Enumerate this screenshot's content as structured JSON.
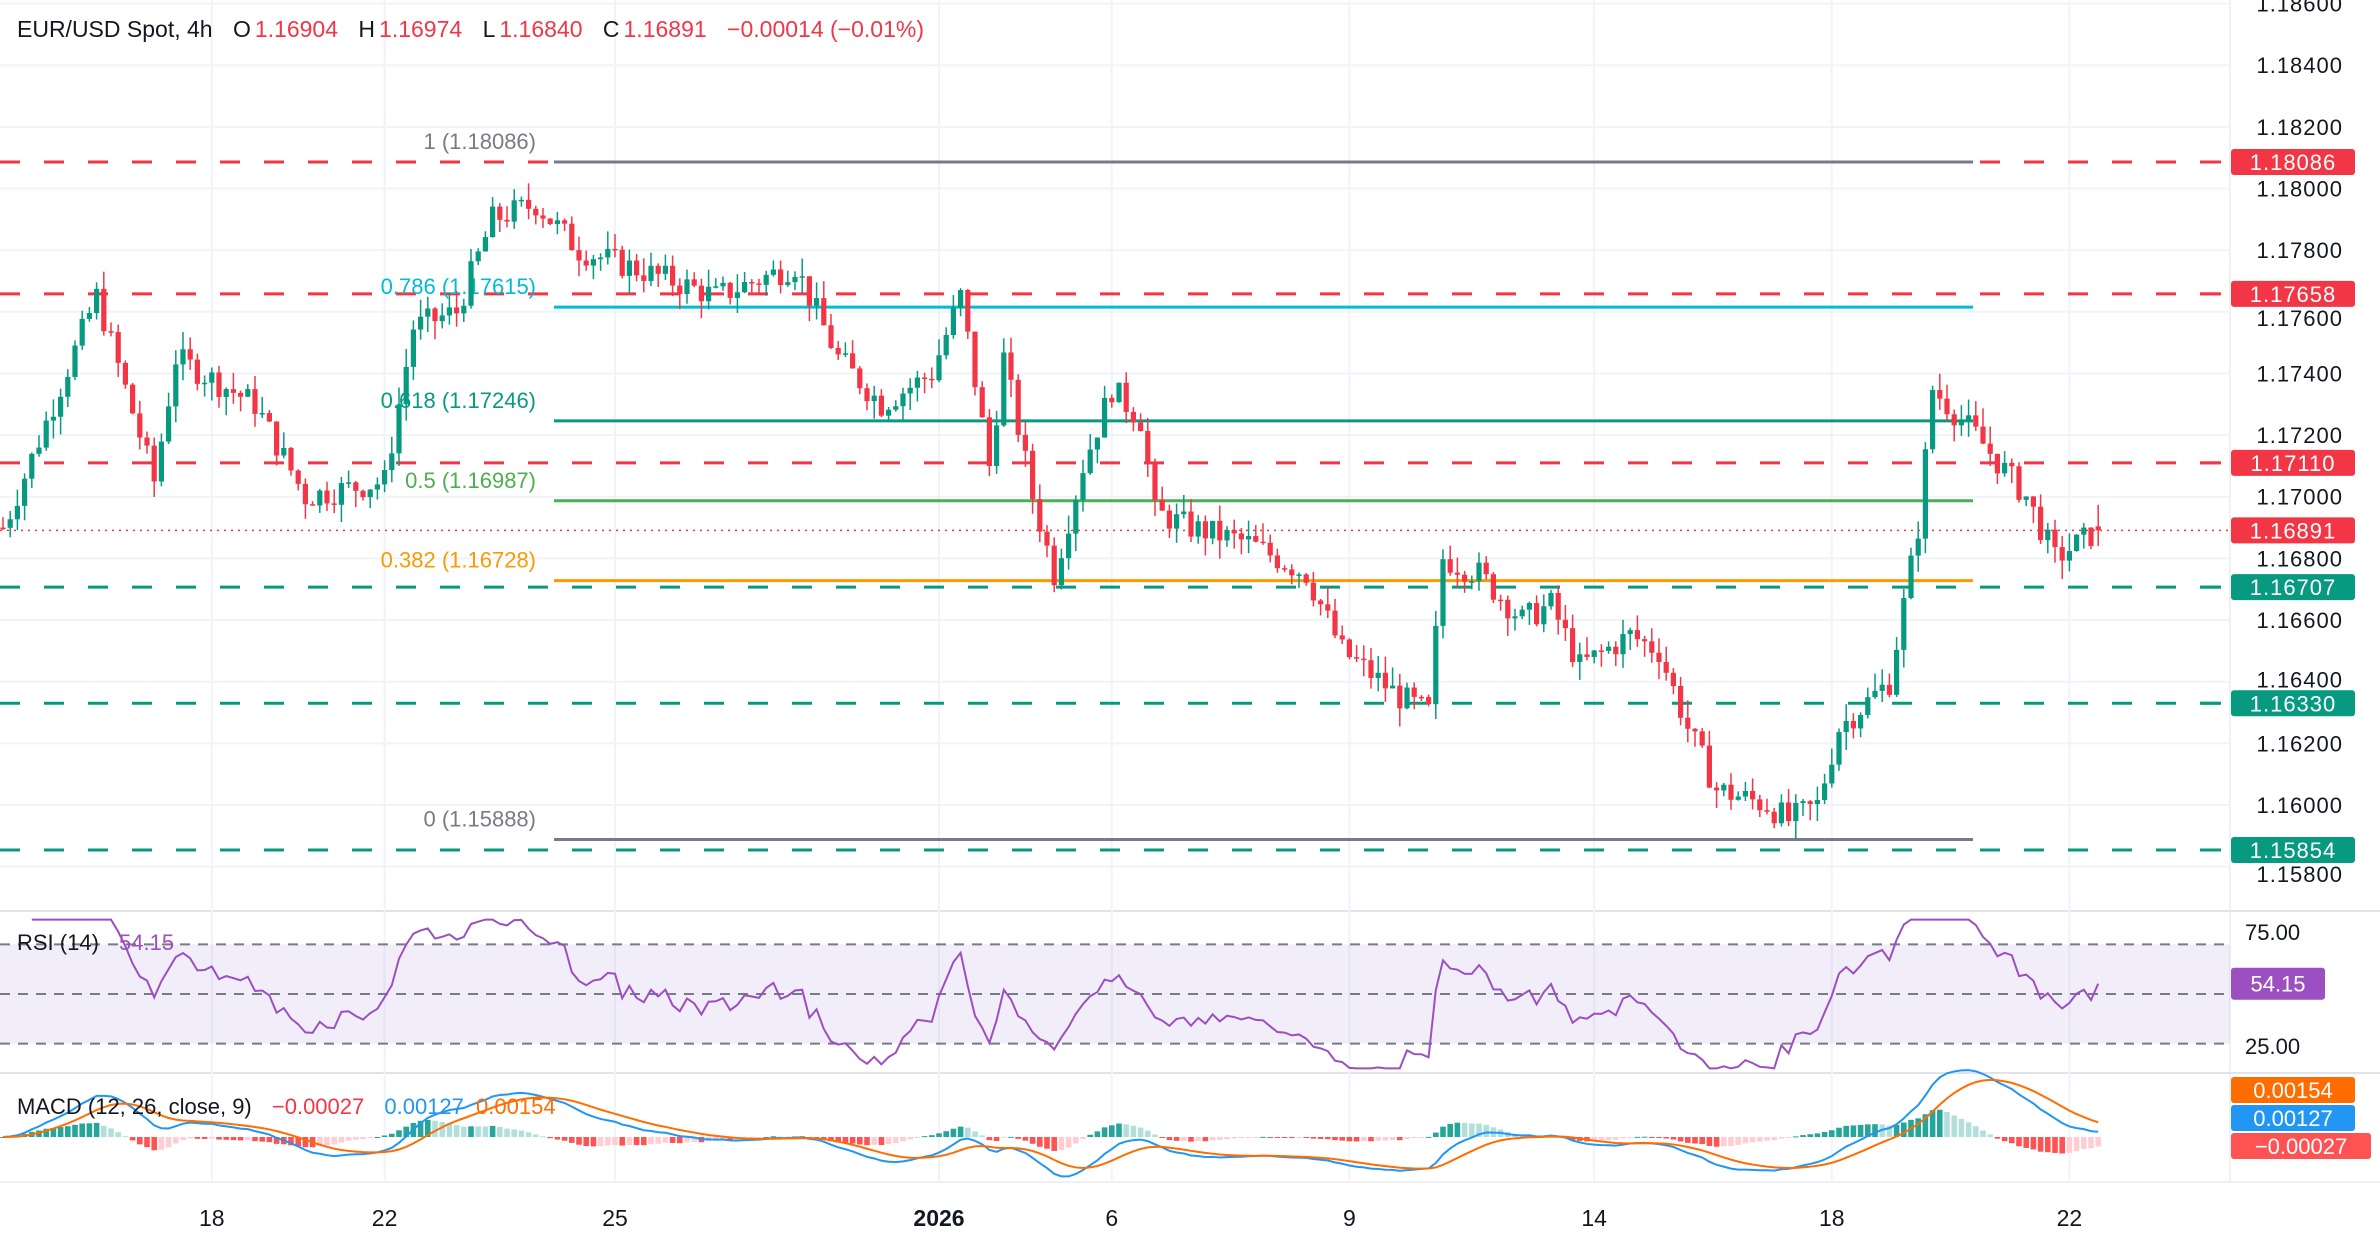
{
  "header": {
    "symbol": "EUR/USD Spot, 4h",
    "o_label": "O",
    "open": "1.16904",
    "h_label": "H",
    "high": "1.16974",
    "l_label": "L",
    "low": "1.16840",
    "c_label": "C",
    "close": "1.16891",
    "change": "−0.00014 (−0.01%)"
  },
  "rsi": {
    "label": "RSI (14)",
    "value": "54.15",
    "axis": [
      "75.00",
      "25.00"
    ],
    "badge": "54.15"
  },
  "macd": {
    "label": "MACD (12, 26, close, 9)",
    "hist": "−0.00027",
    "macd": "0.00127",
    "signal": "0.00154",
    "badges": {
      "signal": "0.00154",
      "macd": "0.00127",
      "hist": "−0.00027"
    }
  },
  "colors": {
    "up": "#089981",
    "down": "#f23645",
    "rsi": "#9c4fc0",
    "macd": "#2196f3",
    "signal": "#ff6d00"
  },
  "chart_data": {
    "type": "candlestick",
    "title": "EUR/USD Spot, 4h",
    "ylim": [
      1.1578,
      1.186
    ],
    "y_ticks": [
      "1.18600",
      "1.18400",
      "1.18200",
      "1.18000",
      "1.17800",
      "1.17600",
      "1.17400",
      "1.17200",
      "1.17000",
      "1.16800",
      "1.16600",
      "1.16400",
      "1.16200",
      "1.16000",
      "1.15800"
    ],
    "x_ticks": [
      {
        "label": "18",
        "i": 29
      },
      {
        "label": "22",
        "i": 53
      },
      {
        "label": "25",
        "i": 85
      },
      {
        "label": "2026",
        "i": 130
      },
      {
        "label": "6",
        "i": 154
      },
      {
        "label": "9",
        "i": 187
      },
      {
        "label": "14",
        "i": 221
      },
      {
        "label": "18",
        "i": 254
      },
      {
        "label": "22",
        "i": 287
      }
    ],
    "price_path": [
      [
        0,
        1.169
      ],
      [
        1,
        1.1695
      ],
      [
        13,
        1.1765
      ],
      [
        21,
        1.1705
      ],
      [
        24,
        1.1745
      ],
      [
        35,
        1.173
      ],
      [
        42,
        1.17
      ],
      [
        53,
        1.1705
      ],
      [
        57,
        1.1755
      ],
      [
        63,
        1.176
      ],
      [
        68,
        1.179
      ],
      [
        74,
        1.1795
      ],
      [
        80,
        1.178
      ],
      [
        93,
        1.177
      ],
      [
        99,
        1.1765
      ],
      [
        110,
        1.1775
      ],
      [
        116,
        1.1745
      ],
      [
        122,
        1.173
      ],
      [
        129,
        1.174
      ],
      [
        133,
        1.1765
      ],
      [
        137,
        1.171
      ],
      [
        139,
        1.1745
      ],
      [
        143,
        1.17
      ],
      [
        146,
        1.1675
      ],
      [
        150,
        1.171
      ],
      [
        154,
        1.1735
      ],
      [
        158,
        1.1725
      ],
      [
        160,
        1.1695
      ],
      [
        165,
        1.169
      ],
      [
        173,
        1.1685
      ],
      [
        181,
        1.1675
      ],
      [
        186,
        1.165
      ],
      [
        194,
        1.1635
      ],
      [
        198,
        1.163
      ],
      [
        200,
        1.168
      ],
      [
        205,
        1.1675
      ],
      [
        211,
        1.166
      ],
      [
        215,
        1.1665
      ],
      [
        219,
        1.1645
      ],
      [
        226,
        1.1655
      ],
      [
        230,
        1.165
      ],
      [
        234,
        1.1625
      ],
      [
        238,
        1.1605
      ],
      [
        245,
        1.16
      ],
      [
        248,
        1.1595
      ],
      [
        252,
        1.16
      ],
      [
        255,
        1.1625
      ],
      [
        262,
        1.164
      ],
      [
        266,
        1.169
      ],
      [
        268,
        1.1735
      ],
      [
        274,
        1.172
      ],
      [
        281,
        1.17
      ],
      [
        285,
        1.168
      ],
      [
        291,
        1.16891
      ]
    ],
    "fib_levels": [
      {
        "ratio": "1",
        "price": 1.18086,
        "label": "1 (1.18086)",
        "color": "#787b86"
      },
      {
        "ratio": "0.786",
        "price": 1.17615,
        "label": "0.786 (1.17615)",
        "color": "#00bcd4"
      },
      {
        "ratio": "0.618",
        "price": 1.17246,
        "label": "0.618 (1.17246)",
        "color": "#089981"
      },
      {
        "ratio": "0.5",
        "price": 1.16987,
        "label": "0.5 (1.16987)",
        "color": "#4caf50"
      },
      {
        "ratio": "0.382",
        "price": 1.16728,
        "label": "0.382 (1.16728)",
        "color": "#ff9800"
      },
      {
        "ratio": "0",
        "price": 1.15888,
        "label": "0 (1.15888)",
        "color": "#787b86"
      }
    ],
    "horizontal_levels": [
      {
        "price": 1.18086,
        "label": "1.18086",
        "color": "#f23645"
      },
      {
        "price": 1.17658,
        "label": "1.17658",
        "color": "#f23645"
      },
      {
        "price": 1.1711,
        "label": "1.17110",
        "color": "#f23645"
      },
      {
        "price": 1.16707,
        "label": "1.16707",
        "color": "#089981"
      },
      {
        "price": 1.1633,
        "label": "1.16330",
        "color": "#089981"
      },
      {
        "price": 1.15854,
        "label": "1.15854",
        "color": "#089981"
      }
    ],
    "last_price": {
      "price": 1.16891,
      "label": "1.16891"
    }
  }
}
